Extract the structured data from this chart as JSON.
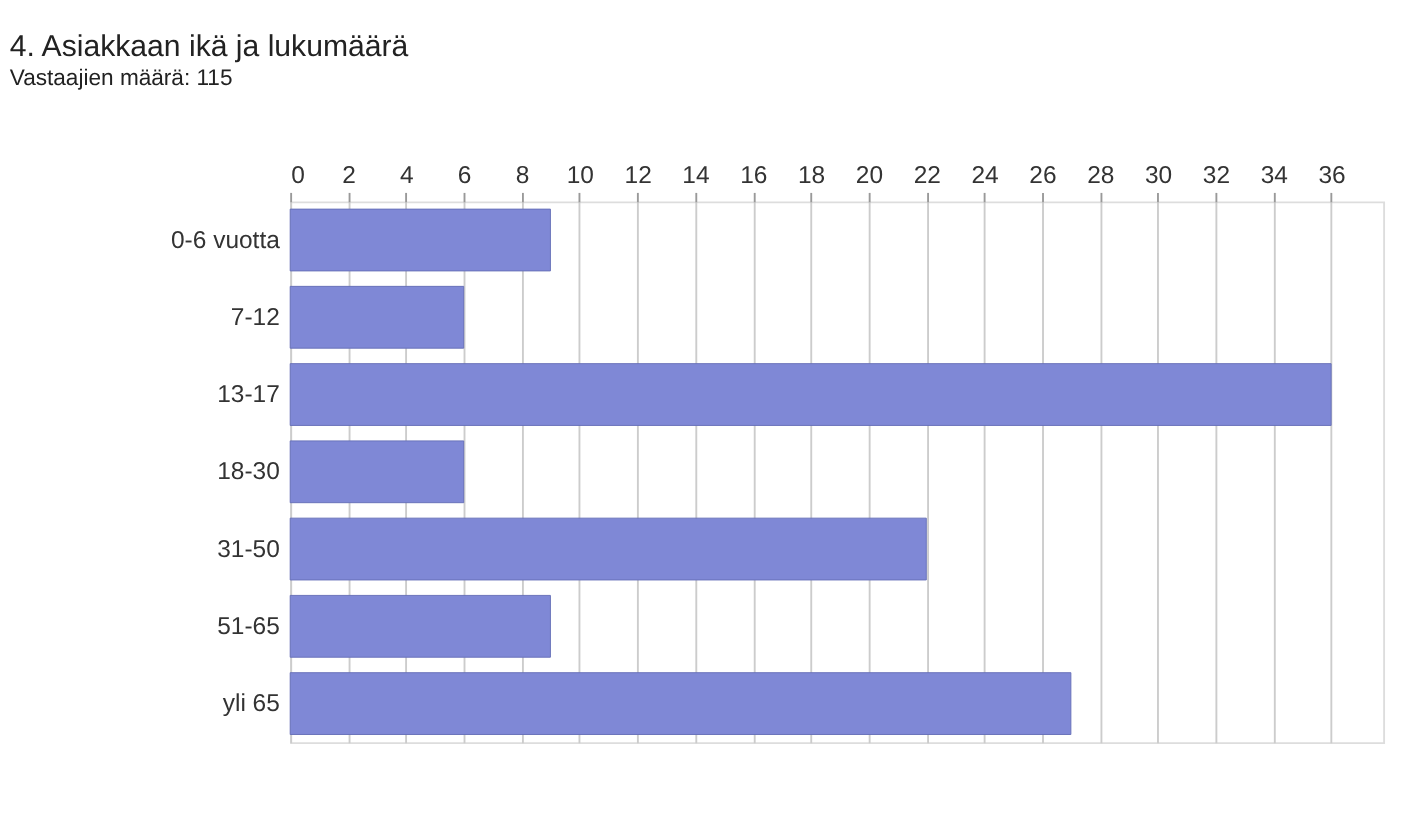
{
  "chart_data": {
    "type": "bar",
    "orientation": "horizontal",
    "title": "4. Asiakkaan ikä ja lukumäärä",
    "subtitle": "Vastaajien määrä: 115",
    "categories": [
      "0-6 vuotta",
      "7-12",
      "13-17",
      "18-30",
      "31-50",
      "51-65",
      "yli 65"
    ],
    "values": [
      9,
      6,
      36,
      6,
      22,
      9,
      27
    ],
    "color": "#7f88d6",
    "xlim": [
      0,
      37.8
    ],
    "xticks": [
      0,
      2,
      4,
      6,
      8,
      10,
      12,
      14,
      16,
      18,
      20,
      22,
      24,
      26,
      28,
      30,
      32,
      34,
      36
    ],
    "grid": "x"
  }
}
